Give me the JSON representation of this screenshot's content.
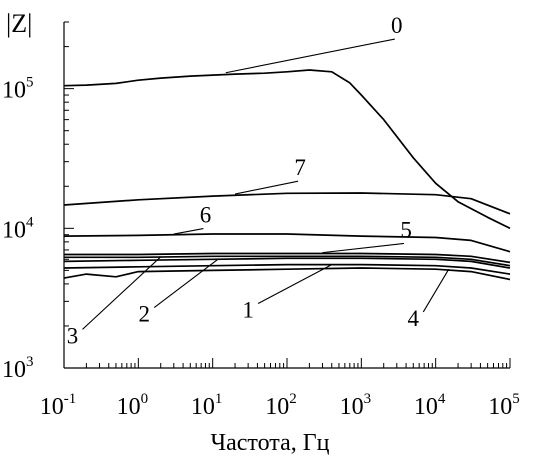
{
  "chart_data": {
    "type": "line",
    "xscale": "log",
    "yscale": "log",
    "xlim": [
      0.1,
      100000
    ],
    "ylim": [
      1000,
      300000
    ],
    "xlabel": "Частота, Гц",
    "ylabel": "|Z|",
    "x_ticks": [
      {
        "base": "10",
        "exp": "-1"
      },
      {
        "base": "10",
        "exp": "0"
      },
      {
        "base": "10",
        "exp": "1"
      },
      {
        "base": "10",
        "exp": "2"
      },
      {
        "base": "10",
        "exp": "3"
      },
      {
        "base": "10",
        "exp": "4"
      },
      {
        "base": "10",
        "exp": "5"
      }
    ],
    "y_ticks": [
      {
        "base": "10",
        "exp": "3",
        "value": 1000
      },
      {
        "base": "10",
        "exp": "4",
        "value": 10000
      },
      {
        "base": "10",
        "exp": "5",
        "value": 100000
      }
    ],
    "series": [
      {
        "name": "0",
        "x": [
          0.1,
          0.2,
          0.5,
          1,
          2,
          5,
          10,
          20,
          50,
          100,
          200,
          400,
          700,
          1000,
          2000,
          5000,
          10000,
          20000,
          50000,
          100000
        ],
        "y": [
          105000,
          106000,
          109000,
          115000,
          119000,
          123000,
          125000,
          127000,
          129000,
          132000,
          136000,
          132000,
          110000,
          90000,
          60000,
          32000,
          21000,
          15500,
          12000,
          10000
        ]
      },
      {
        "name": "7",
        "x": [
          0.1,
          1,
          10,
          100,
          1000,
          10000,
          30000,
          100000
        ],
        "y": [
          14700,
          16000,
          17000,
          17800,
          17900,
          17400,
          16300,
          12700
        ]
      },
      {
        "name": "6",
        "x": [
          0.1,
          1,
          10,
          100,
          1000,
          10000,
          30000,
          100000
        ],
        "y": [
          8800,
          8900,
          9100,
          9100,
          8800,
          8600,
          8200,
          6800
        ]
      },
      {
        "name": "5",
        "x": [
          0.1,
          1,
          10,
          100,
          1000,
          10000,
          30000,
          100000
        ],
        "y": [
          6500,
          6500,
          6600,
          6600,
          6600,
          6500,
          6300,
          5700
        ]
      },
      {
        "name": "3",
        "x": [
          0.1,
          1,
          10,
          100,
          1000,
          10000,
          30000,
          100000
        ],
        "y": [
          6200,
          6200,
          6300,
          6300,
          6300,
          6200,
          6000,
          5400
        ]
      },
      {
        "name": "2",
        "x": [
          0.1,
          1,
          10,
          100,
          1000,
          10000,
          30000,
          100000
        ],
        "y": [
          5800,
          5900,
          6000,
          6100,
          6100,
          6000,
          5800,
          5200
        ]
      },
      {
        "name": "1",
        "x": [
          0.1,
          1,
          10,
          100,
          1000,
          10000,
          30000,
          100000
        ],
        "y": [
          5200,
          5300,
          5400,
          5500,
          5500,
          5400,
          5200,
          4700
        ]
      },
      {
        "name": "4",
        "x": [
          0.1,
          0.2,
          0.5,
          1,
          10,
          100,
          1000,
          10000,
          30000,
          100000
        ],
        "y": [
          4400,
          4700,
          4500,
          4900,
          5000,
          5100,
          5200,
          5100,
          4900,
          4300
        ]
      }
    ],
    "curve_labels": [
      {
        "text": "0",
        "series": "0",
        "lx": 3000,
        "ly": 250000,
        "ax": 15,
        "ay": 130000
      },
      {
        "text": "7",
        "series": "7",
        "lx": 150,
        "ly": 24000,
        "ax": 20,
        "ay": 17600
      },
      {
        "text": "6",
        "series": "6",
        "lx": 8,
        "ly": 11000,
        "ax": 3,
        "ay": 9100
      },
      {
        "text": "5",
        "series": "5",
        "lx": 4000,
        "ly": 8600,
        "ax": 300,
        "ay": 6700
      },
      {
        "text": "3",
        "series": "3",
        "lx": 0.13,
        "ly": 1500,
        "ax": 2,
        "ay": 6250
      },
      {
        "text": "2",
        "series": "2",
        "lx": 1.2,
        "ly": 2150,
        "ax": 12,
        "ay": 6050
      },
      {
        "text": "1",
        "series": "1",
        "lx": 30,
        "ly": 2300,
        "ax": 400,
        "ay": 5500
      },
      {
        "text": "4",
        "series": "4",
        "lx": 5000,
        "ly": 2000,
        "ax": 15000,
        "ay": 5100
      }
    ]
  }
}
